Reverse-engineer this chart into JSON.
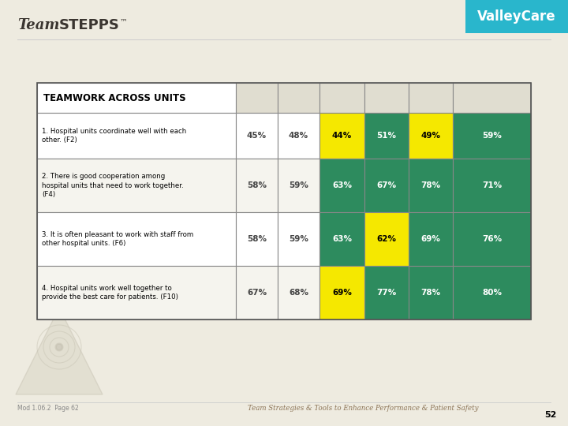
{
  "header": "TEAMWORK ACROSS UNITS",
  "rows": [
    {
      "label": "1. Hospital units coordinate well with each\nother. (F2)",
      "values": [
        "45%",
        "48%",
        "44%",
        "51%",
        "49%",
        "59%"
      ],
      "colors": [
        "none",
        "none",
        "#f5e800",
        "#2d8b5e",
        "#f5e800",
        "#2d8b5e"
      ]
    },
    {
      "label": "2. There is good cooperation among\nhospital units that need to work together.\n(F4)",
      "values": [
        "58%",
        "59%",
        "63%",
        "67%",
        "78%",
        "71%"
      ],
      "colors": [
        "none",
        "none",
        "#2d8b5e",
        "#2d8b5e",
        "#2d8b5e",
        "#2d8b5e"
      ]
    },
    {
      "label": "3. It is often pleasant to work with staff from\nother hospital units. (F6)",
      "values": [
        "58%",
        "59%",
        "63%",
        "62%",
        "69%",
        "76%"
      ],
      "colors": [
        "none",
        "none",
        "#2d8b5e",
        "#f5e800",
        "#2d8b5e",
        "#2d8b5e"
      ]
    },
    {
      "label": "4. Hospital units work well together to\nprovide the best care for patients. (F10)",
      "values": [
        "67%",
        "68%",
        "69%",
        "77%",
        "78%",
        "80%"
      ],
      "colors": [
        "none",
        "none",
        "#f5e800",
        "#2d8b5e",
        "#2d8b5e",
        "#2d8b5e"
      ]
    }
  ],
  "bg_color": "#eeebe0",
  "valley_care_bg": "#29b6cc",
  "valley_care_text": "ValleyCare",
  "valley_care_text_color": "#ffffff",
  "table_border_color": "#888888",
  "footer_text": "Team Strategies & Tools to Enhance Performance & Patient Safety",
  "page_num": "52",
  "mod_text": "Mod 1.06.2  Page 62",
  "footer_line_color": "#aaaaaa",
  "footer_text_color": "#8b7355",
  "mod_text_color": "#888888"
}
